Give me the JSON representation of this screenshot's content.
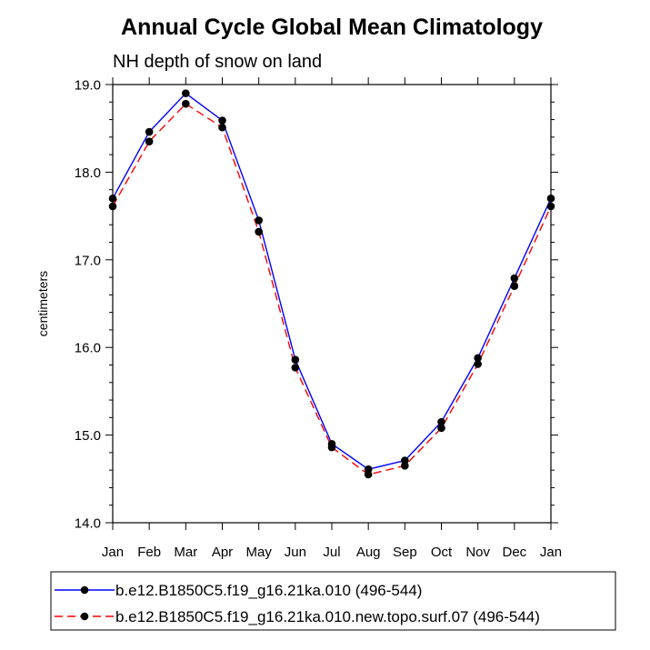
{
  "chart_data": {
    "type": "line",
    "title": "Annual Cycle Global Mean Climatology",
    "subtitle": "NH depth of snow on land",
    "xlabel": "",
    "ylabel": "centimeters",
    "categories": [
      "Jan",
      "Feb",
      "Mar",
      "Apr",
      "May",
      "Jun",
      "Jul",
      "Aug",
      "Sep",
      "Oct",
      "Nov",
      "Dec",
      "Jan"
    ],
    "ylim": [
      14.0,
      19.0
    ],
    "yticks": [
      "14.0",
      "15.0",
      "16.0",
      "17.0",
      "18.0",
      "19.0"
    ],
    "series": [
      {
        "name": "b.e12.B1850C5.f19_g16.21ka.010 (496-544)",
        "color": "#0000ff",
        "dash": "solid",
        "values": [
          17.7,
          18.46,
          18.9,
          18.59,
          17.45,
          15.86,
          14.9,
          14.61,
          14.71,
          15.15,
          15.88,
          16.79,
          17.7
        ]
      },
      {
        "name": "b.e12.B1850C5.f19_g16.21ka.010.new.topo.surf.07 (496-544)",
        "color": "#ff0000",
        "dash": "dashed",
        "values": [
          17.61,
          18.35,
          18.78,
          18.51,
          17.32,
          15.77,
          14.86,
          14.55,
          14.65,
          15.08,
          15.81,
          16.7,
          17.61
        ]
      }
    ]
  }
}
